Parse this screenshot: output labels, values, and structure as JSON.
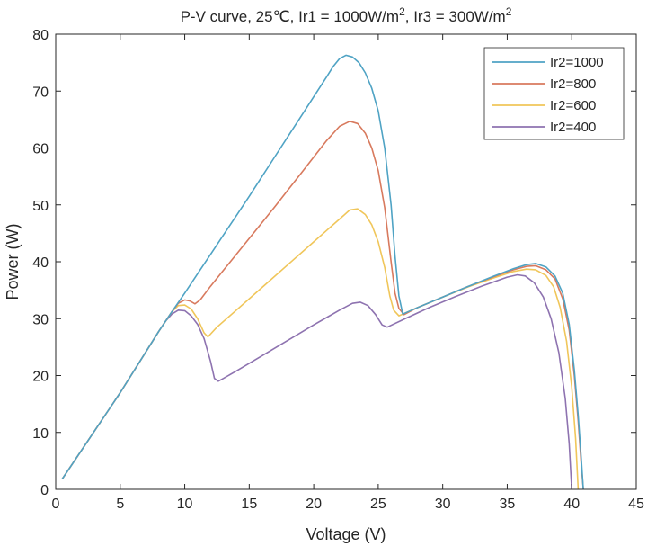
{
  "chart_data": {
    "type": "line",
    "title": {
      "prefix": "P-V curve, 25℃, Ir1 = 1000W/m",
      "sup1": "2",
      "middle": ", Ir3 =  300W/m",
      "sup2": "2"
    },
    "xlabel": "Voltage (V)",
    "ylabel": "Power (W)",
    "xlim": [
      0,
      45
    ],
    "ylim": [
      0,
      80
    ],
    "xticks": [
      0,
      5,
      10,
      15,
      20,
      25,
      30,
      35,
      40,
      45
    ],
    "yticks": [
      0,
      10,
      20,
      30,
      40,
      50,
      60,
      70,
      80
    ],
    "grid": false,
    "legend_position": "top-right",
    "series": [
      {
        "name": "Ir2=1000",
        "color": "#4fa3c4",
        "points": [
          [
            0.5,
            1.8
          ],
          [
            5,
            17
          ],
          [
            8,
            27.8
          ],
          [
            8.5,
            29.5
          ],
          [
            9,
            31.2
          ],
          [
            10,
            34.5
          ],
          [
            11,
            37.9
          ],
          [
            12,
            41.3
          ],
          [
            13,
            44.7
          ],
          [
            14,
            48.1
          ],
          [
            15,
            51.5
          ],
          [
            16,
            55
          ],
          [
            17,
            58.5
          ],
          [
            18,
            62
          ],
          [
            19,
            65.5
          ],
          [
            20,
            69
          ],
          [
            21,
            72.5
          ],
          [
            21.5,
            74.3
          ],
          [
            22,
            75.7
          ],
          [
            22.5,
            76.3
          ],
          [
            23,
            76
          ],
          [
            23.5,
            75
          ],
          [
            24,
            73.2
          ],
          [
            24.5,
            70.5
          ],
          [
            25,
            66.5
          ],
          [
            25.5,
            60
          ],
          [
            26,
            50
          ],
          [
            26.3,
            41
          ],
          [
            26.6,
            34
          ],
          [
            26.9,
            30.8
          ],
          [
            28,
            31.9
          ],
          [
            30,
            33.8
          ],
          [
            32,
            35.7
          ],
          [
            34,
            37.5
          ],
          [
            35.5,
            38.8
          ],
          [
            36.5,
            39.5
          ],
          [
            37.2,
            39.7
          ],
          [
            38,
            39.1
          ],
          [
            38.7,
            37.5
          ],
          [
            39.3,
            34.5
          ],
          [
            39.8,
            29
          ],
          [
            40.2,
            21
          ],
          [
            40.5,
            13
          ],
          [
            40.75,
            5
          ],
          [
            40.9,
            0
          ]
        ]
      },
      {
        "name": "Ir2=800",
        "color": "#d87a5e",
        "points": [
          [
            0.5,
            1.8
          ],
          [
            5,
            17
          ],
          [
            8,
            27.8
          ],
          [
            8.5,
            29.5
          ],
          [
            9,
            31.2
          ],
          [
            9.5,
            32.7
          ],
          [
            10,
            33.3
          ],
          [
            10.4,
            33.1
          ],
          [
            10.8,
            32.6
          ],
          [
            11.2,
            33.3
          ],
          [
            12,
            35.7
          ],
          [
            13,
            38.5
          ],
          [
            14,
            41.3
          ],
          [
            15,
            44.1
          ],
          [
            16,
            46.9
          ],
          [
            17,
            49.7
          ],
          [
            18,
            52.6
          ],
          [
            19,
            55.5
          ],
          [
            20,
            58.4
          ],
          [
            21,
            61.3
          ],
          [
            22,
            63.8
          ],
          [
            22.8,
            64.7
          ],
          [
            23.4,
            64.3
          ],
          [
            24,
            62.6
          ],
          [
            24.5,
            60
          ],
          [
            25,
            56
          ],
          [
            25.5,
            49.5
          ],
          [
            26,
            40
          ],
          [
            26.3,
            34.5
          ],
          [
            26.6,
            31.8
          ],
          [
            27,
            30.7
          ],
          [
            28,
            31.9
          ],
          [
            30,
            33.8
          ],
          [
            32,
            35.7
          ],
          [
            34,
            37.4
          ],
          [
            35.5,
            38.6
          ],
          [
            36.5,
            39.2
          ],
          [
            37.2,
            39.3
          ],
          [
            38,
            38.6
          ],
          [
            38.7,
            37
          ],
          [
            39.3,
            33.5
          ],
          [
            39.8,
            28
          ],
          [
            40.2,
            20
          ],
          [
            40.5,
            12
          ],
          [
            40.75,
            4
          ],
          [
            40.9,
            0
          ]
        ]
      },
      {
        "name": "Ir2=600",
        "color": "#f0c65a",
        "points": [
          [
            0.5,
            1.8
          ],
          [
            5,
            17
          ],
          [
            8,
            27.8
          ],
          [
            8.5,
            29.5
          ],
          [
            9,
            31.2
          ],
          [
            9.5,
            32.3
          ],
          [
            10,
            32.4
          ],
          [
            10.5,
            31.7
          ],
          [
            11,
            30
          ],
          [
            11.5,
            27.5
          ],
          [
            11.8,
            26.8
          ],
          [
            12.5,
            28.5
          ],
          [
            14,
            31.5
          ],
          [
            16,
            35.5
          ],
          [
            18,
            39.5
          ],
          [
            20,
            43.5
          ],
          [
            21,
            45.5
          ],
          [
            22,
            47.5
          ],
          [
            22.8,
            49.1
          ],
          [
            23.4,
            49.3
          ],
          [
            24,
            48.3
          ],
          [
            24.5,
            46.5
          ],
          [
            25,
            43.5
          ],
          [
            25.5,
            39
          ],
          [
            25.9,
            34
          ],
          [
            26.2,
            31.5
          ],
          [
            26.6,
            30.5
          ],
          [
            28,
            31.9
          ],
          [
            30,
            33.8
          ],
          [
            32,
            35.6
          ],
          [
            34,
            37.2
          ],
          [
            35.5,
            38.3
          ],
          [
            36.5,
            38.7
          ],
          [
            37.2,
            38.6
          ],
          [
            38,
            37.6
          ],
          [
            38.6,
            35.6
          ],
          [
            39.1,
            32
          ],
          [
            39.6,
            26
          ],
          [
            40,
            18
          ],
          [
            40.3,
            9
          ],
          [
            40.5,
            0
          ]
        ]
      },
      {
        "name": "Ir2=400",
        "color": "#8e73b0",
        "points": [
          [
            0.5,
            1.8
          ],
          [
            5,
            17
          ],
          [
            8,
            27.8
          ],
          [
            8.5,
            29.5
          ],
          [
            9,
            30.8
          ],
          [
            9.5,
            31.5
          ],
          [
            10,
            31.4
          ],
          [
            10.5,
            30.5
          ],
          [
            11,
            29
          ],
          [
            11.5,
            26.5
          ],
          [
            12,
            22.5
          ],
          [
            12.3,
            19.5
          ],
          [
            12.6,
            19
          ],
          [
            13,
            19.5
          ],
          [
            14,
            20.8
          ],
          [
            16,
            23.5
          ],
          [
            18,
            26.2
          ],
          [
            20,
            28.9
          ],
          [
            21,
            30.2
          ],
          [
            22,
            31.5
          ],
          [
            23,
            32.7
          ],
          [
            23.6,
            32.9
          ],
          [
            24.2,
            32.3
          ],
          [
            24.8,
            30.7
          ],
          [
            25.3,
            28.9
          ],
          [
            25.7,
            28.5
          ],
          [
            27,
            29.9
          ],
          [
            29,
            32
          ],
          [
            31,
            33.9
          ],
          [
            33,
            35.7
          ],
          [
            35,
            37.3
          ],
          [
            35.8,
            37.7
          ],
          [
            36.4,
            37.5
          ],
          [
            37.1,
            36.3
          ],
          [
            37.8,
            33.8
          ],
          [
            38.4,
            30
          ],
          [
            39,
            24
          ],
          [
            39.5,
            16
          ],
          [
            39.8,
            8
          ],
          [
            40,
            0
          ]
        ]
      }
    ]
  }
}
